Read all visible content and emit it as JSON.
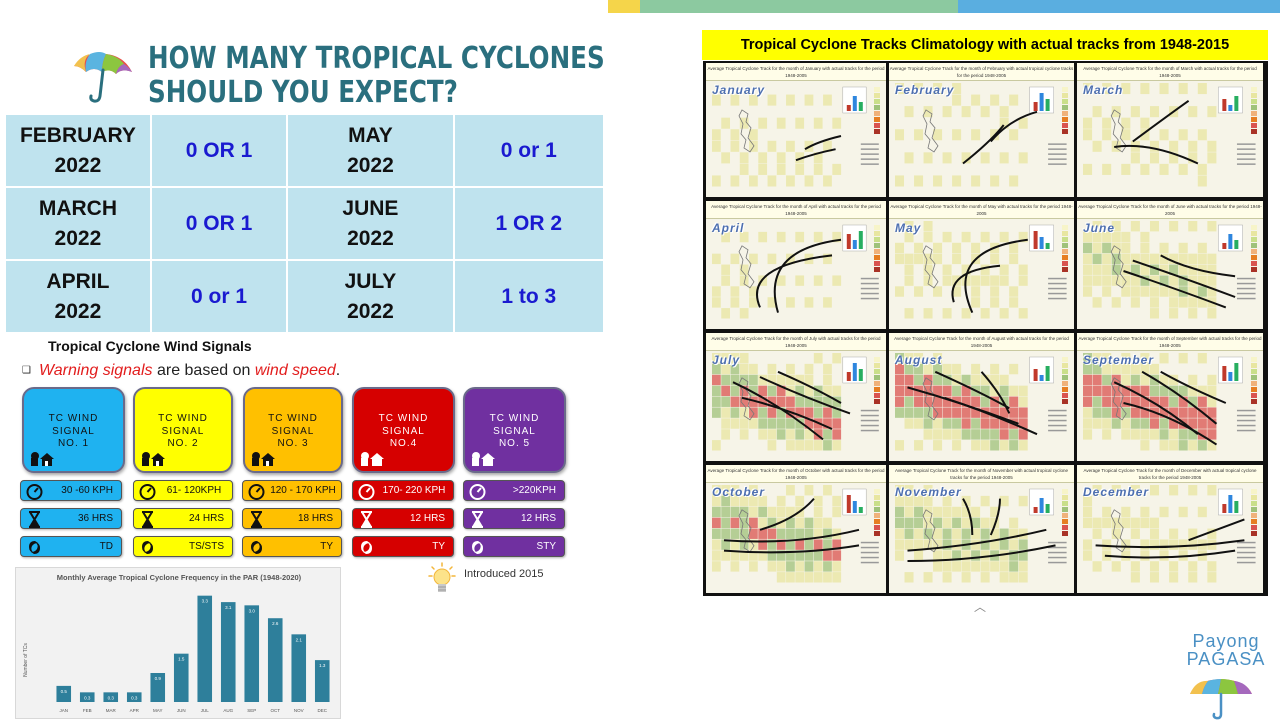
{
  "title": {
    "line1": "HOW MANY TROPICAL CYCLONES",
    "line2": "SHOULD YOU EXPECT?"
  },
  "expectations": [
    {
      "month_name": "FEBRUARY",
      "year": "2022",
      "value": "0 OR 1",
      "month_name_2": "MAY",
      "year_2": "2022",
      "value_2": "0 or 1"
    },
    {
      "month_name": "MARCH",
      "year": "2022",
      "value": "0 OR 1",
      "month_name_2": "JUNE",
      "year_2": "2022",
      "value_2": "1 OR 2"
    },
    {
      "month_name": "APRIL",
      "year": "2022",
      "value": "0 or 1",
      "month_name_2": "JULY",
      "year_2": "2022",
      "value_2": "1 to 3"
    }
  ],
  "wind_signals": {
    "heading": "Tropical Cyclone Wind Signals",
    "note_part1": "Warning signals",
    "note_part2": " are based on ",
    "note_part3": "wind speed",
    "note_part4": ".",
    "signals": [
      {
        "l1": "TC WIND",
        "l2": "SIGNAL",
        "l3": "NO. 1",
        "speed": "30 -60 KPH",
        "lead": "36 HRS",
        "category": "TD",
        "color": "#1fb2f0",
        "text_color": "#111111"
      },
      {
        "l1": "TC WIND",
        "l2": "SIGNAL",
        "l3": "NO. 2",
        "speed": "61- 120KPH",
        "lead": "24 HRS",
        "category": "TS/STS",
        "color": "#ffff00",
        "text_color": "#111111"
      },
      {
        "l1": "TC WIND",
        "l2": "SIGNAL",
        "l3": "NO. 3",
        "speed": "120 - 170 KPH",
        "lead": "18 HRS",
        "category": "TY",
        "color": "#ffc000",
        "text_color": "#111111"
      },
      {
        "l1": "TC WIND",
        "l2": "SIGNAL",
        "l3": "NO.4",
        "speed": "170- 220 KPH",
        "lead": "12 HRS",
        "category": "TY",
        "color": "#d60000",
        "text_color": "#ffffff"
      },
      {
        "l1": "TC WIND",
        "l2": "SIGNAL",
        "l3": "NO. 5",
        "speed": ">220KPH",
        "lead": "12 HRS",
        "category": "STY",
        "color": "#7030a0",
        "text_color": "#ffffff"
      }
    ],
    "introduced": "Introduced 2015"
  },
  "chart_data": {
    "type": "bar",
    "title": "Monthly Average Tropical Cyclone Frequency in the PAR (1948-2020)",
    "ylabel": "Number of TCs",
    "xlabel": "",
    "categories": [
      "JAN",
      "FEB",
      "MAR",
      "APR",
      "MAY",
      "JUN",
      "JUL",
      "AUG",
      "SEP",
      "OCT",
      "NOV",
      "DEC"
    ],
    "values": [
      0.5,
      0.3,
      0.3,
      0.3,
      0.9,
      1.5,
      3.3,
      3.1,
      3.0,
      2.6,
      2.1,
      1.3
    ],
    "data_labels": [
      "0.5",
      "0.3",
      "0.3",
      "0.3",
      "0.9",
      "1.5",
      "3.3",
      "3.1",
      "3.0",
      "2.6",
      "2.1",
      "1.3"
    ],
    "ylim": [
      0,
      3.6
    ],
    "color": "#2e7f9b",
    "grid": false
  },
  "tracks": {
    "title": "Tropical Cyclone Tracks Climatology with actual tracks from 1948-2015",
    "months": [
      {
        "name": "January",
        "header": "Average Tropical Cyclone Track for the month of January with actual tracks for the period 1948-2005"
      },
      {
        "name": "February",
        "header": "Average Tropical Cyclone Track for the month of February with actual tropical cyclone tracks for the period 1948-2005"
      },
      {
        "name": "March",
        "header": "Average Tropical Cyclone Track for the month of March with actual tracks for the period 1948-2005"
      },
      {
        "name": "April",
        "header": "Average Tropical Cyclone Track for the month of April with actual tracks for the period 1948-2005"
      },
      {
        "name": "May",
        "header": "Average Tropical Cyclone Track for the month of May with actual tracks for the period 1948-2005"
      },
      {
        "name": "June",
        "header": "Average Tropical Cyclone Track for the month of June with actual tracks for the period 1948-2005"
      },
      {
        "name": "July",
        "header": "Average Tropical Cyclone Track for the month of July with actual tracks for the period 1948-2005"
      },
      {
        "name": "August",
        "header": "Average Tropical Cyclone Track for the month of August with actual tracks for the period 1948-2005"
      },
      {
        "name": "September",
        "header": "Average Tropical Cyclone Track for the month of September with actual tracks for the period 1948-2005"
      },
      {
        "name": "October",
        "header": "Average Tropical Cyclone Track for the month of October with actual tracks for the period 1948-2005"
      },
      {
        "name": "November",
        "header": "Average Tropical Cyclone Track for the month of November with actual tropical cyclone tracks for the period 1948-2005"
      },
      {
        "name": "December",
        "header": "Average Tropical Cyclone Track for the month of December with actual tropical cyclone tracks for the period 1948-2005"
      }
    ]
  },
  "logo": {
    "line1": "Payong",
    "line2": "PAGASA"
  },
  "colors": {
    "title": "#2a6f7e",
    "table_bg": "#bfe3ee",
    "table_value": "#1a1ad0",
    "strip_yellow": "#f5d54a",
    "strip_green": "#8cc9a0",
    "strip_blue": "#5aaee0"
  }
}
